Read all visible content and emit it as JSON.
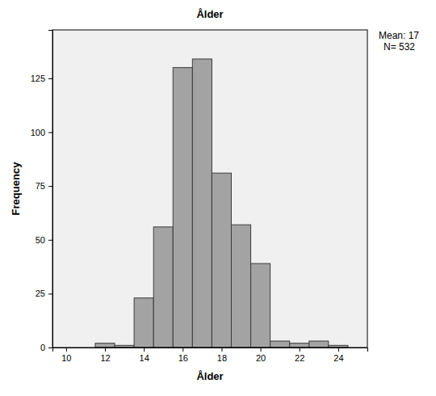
{
  "chart_data": {
    "type": "histogram",
    "title": "Ålder",
    "x_label": "Ålder",
    "y_label": "Frequency",
    "annotations": [
      "Mean: 17",
      "N= 532"
    ],
    "bins": [
      11.5,
      12.5,
      13.5,
      14.5,
      15.5,
      16.5,
      17.5,
      18.5,
      19.5,
      20.5,
      21.5,
      22.5,
      23.5,
      24.5
    ],
    "values": [
      2,
      1,
      23,
      56,
      130,
      134,
      81,
      57,
      39,
      3,
      2,
      3,
      1
    ],
    "color": "#a3a3a3",
    "xlim": [
      9.3,
      25.5
    ],
    "xticks": [
      10,
      12,
      14,
      16,
      18,
      20,
      22,
      24
    ],
    "ylim": [
      0,
      147.5
    ],
    "yticks": [
      0,
      25,
      50,
      75,
      100,
      125
    ],
    "grid": false
  }
}
